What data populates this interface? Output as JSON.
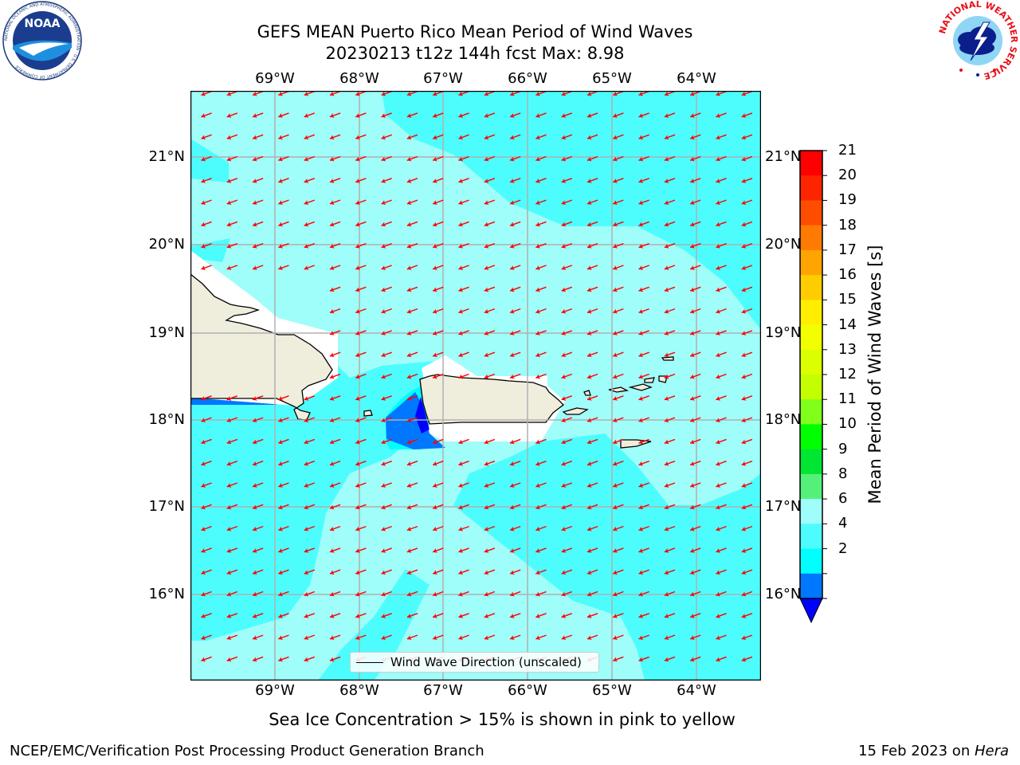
{
  "title": {
    "line1": "GEFS MEAN Puerto Rico Mean Period of Wind Waves",
    "line2": "20230213 t12z 144h fcst   Max: 8.98"
  },
  "logos": {
    "noaa_text": "NOAA",
    "noaa_ring_text": "NATIONAL OCEANIC AND ATMOSPHERIC ADMINISTRATION · U.S. DEPARTMENT OF COMMERCE",
    "nws_ring_text": "NATIONAL WEATHER SERVICE"
  },
  "map": {
    "lon_ticks": [
      "69°W",
      "68°W",
      "67°W",
      "66°W",
      "65°W",
      "64°W"
    ],
    "lat_ticks": [
      "21°N",
      "20°N",
      "19°N",
      "18°N",
      "17°N",
      "16°N"
    ],
    "legend_label": "Wind Wave Direction (unscaled)",
    "arrow_color": "#ff0000",
    "land_color": "#efeddc"
  },
  "colorbar": {
    "title": "Mean Period of Wind Waves [s]",
    "labels": [
      "21",
      "20",
      "19",
      "18",
      "17",
      "16",
      "15",
      "14",
      "13",
      "12",
      "11",
      "10",
      "9",
      "8",
      "6",
      "4",
      "2"
    ],
    "colors": [
      "#ff0000",
      "#ff2400",
      "#ff4d00",
      "#ff7a00",
      "#ffa400",
      "#ffcc00",
      "#ffee00",
      "#f2ff00",
      "#dcff00",
      "#c3ff00",
      "#7fff1a",
      "#00ff00",
      "#00e633",
      "#55f07a",
      "#9ffdfa",
      "#4dfdfd",
      "#00ffff",
      "#0077ff",
      "#0000ff"
    ]
  },
  "footer": {
    "ice_note": "Sea Ice Concentration > 15% is shown in pink to yellow",
    "credit": "NCEP/EMC/Verification Post Processing Product Generation Branch",
    "date_prefix": "15 Feb 2023 on ",
    "host": "Hera"
  }
}
